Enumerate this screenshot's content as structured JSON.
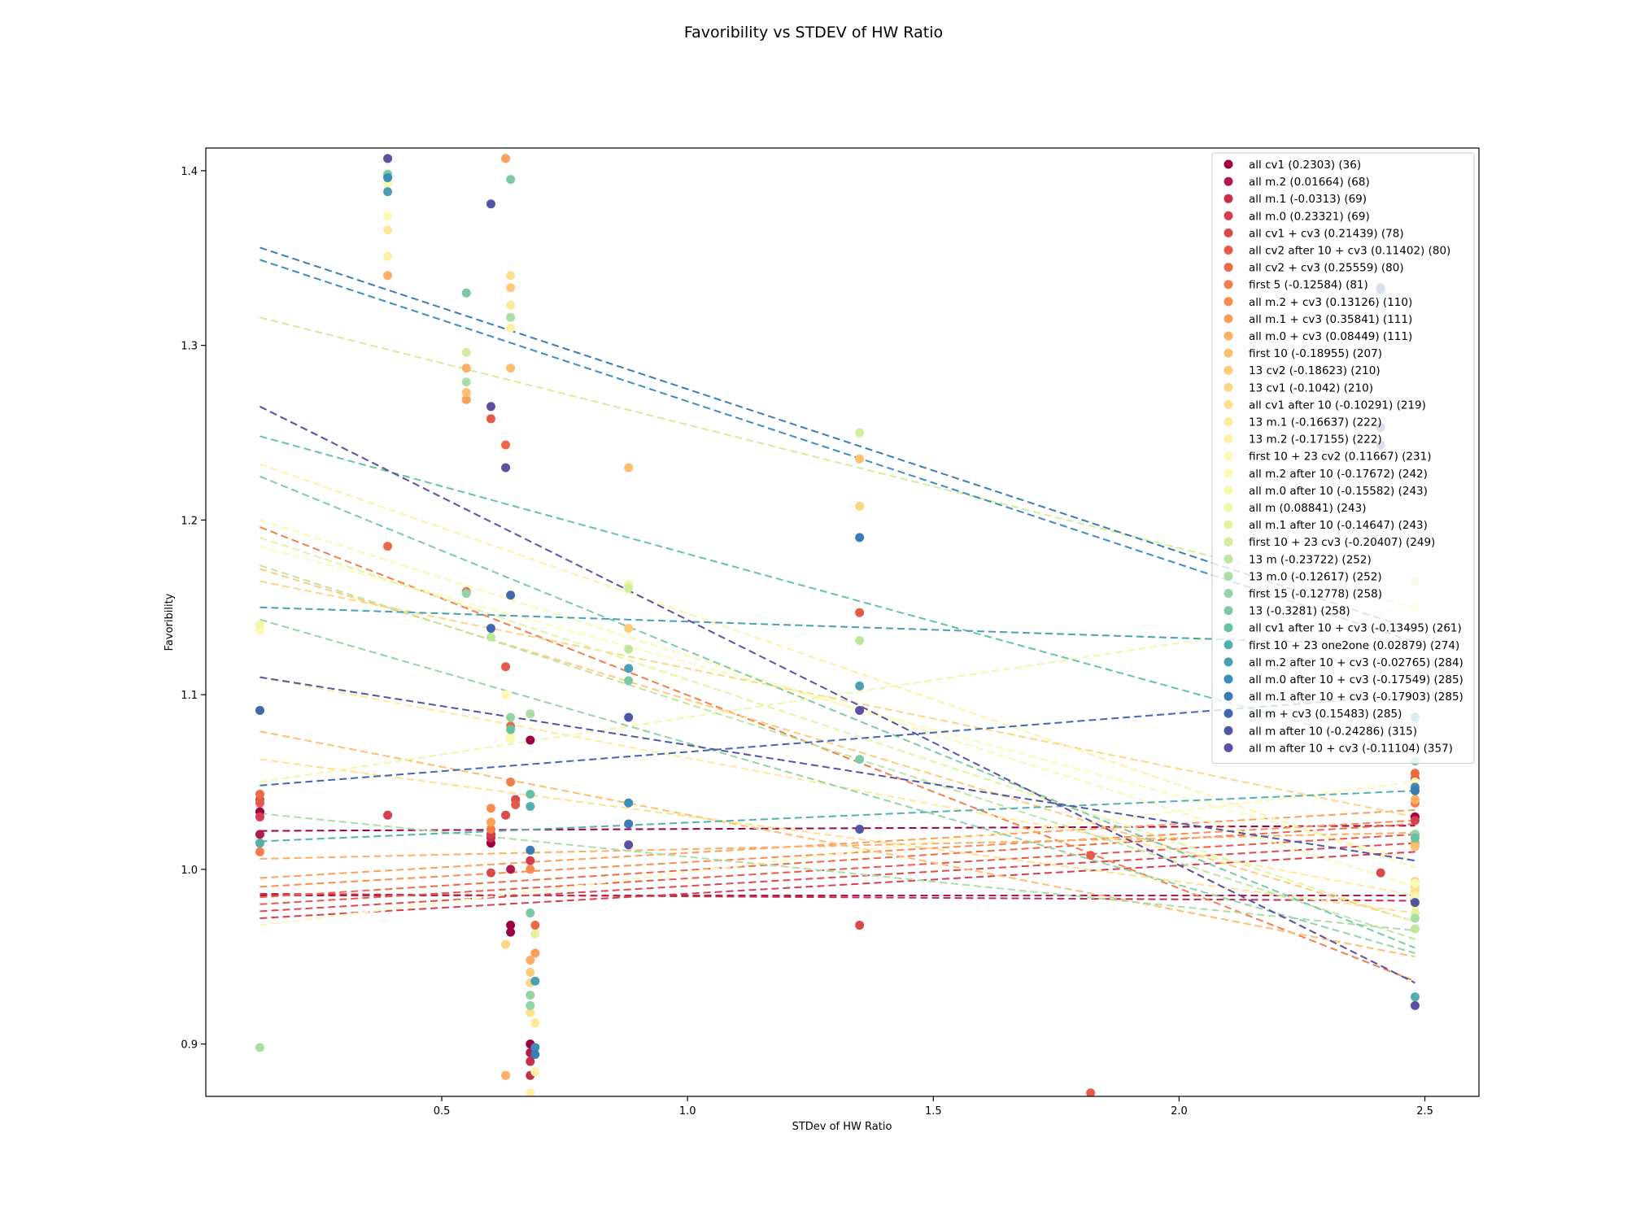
{
  "chart_data": {
    "type": "scatter",
    "title": "Favoribility vs STDEV of HW Ratio",
    "xlabel": "STDev of HW Ratio",
    "ylabel": "Favoribility",
    "xlim": [
      0.02,
      2.61
    ],
    "ylim": [
      0.87,
      1.413
    ],
    "xticks": [
      0.5,
      1.0,
      1.5,
      2.0,
      2.5
    ],
    "yticks": [
      0.9,
      1.0,
      1.1,
      1.2,
      1.3,
      1.4
    ],
    "xtick_labels": [
      "0.5",
      "1.0",
      "1.5",
      "2.0",
      "2.5"
    ],
    "ytick_labels": [
      "0.9",
      "1.0",
      "1.1",
      "1.2",
      "1.3",
      "1.4"
    ],
    "grid": false,
    "legend_position": "upper-right",
    "trendline_x": [
      0.13,
      2.48
    ],
    "series": [
      {
        "name": "all cv1 (0.2303) (36)",
        "color": "#9e0142",
        "trend": [
          1.022,
          1.025
        ],
        "points": [
          [
            0.13,
            1.033
          ],
          [
            0.6,
            1.015
          ],
          [
            0.64,
            0.968
          ],
          [
            0.64,
            0.964
          ],
          [
            0.68,
            1.074
          ],
          [
            0.68,
            0.9
          ],
          [
            2.48,
            1.03
          ]
        ]
      },
      {
        "name": "all m.2 (0.01664) (68)",
        "color": "#b11a4a",
        "trend": [
          0.985,
          0.985
        ],
        "points": [
          [
            0.13,
            1.02
          ],
          [
            0.6,
            1.02
          ],
          [
            0.64,
            1.0
          ],
          [
            0.68,
            0.895
          ],
          [
            2.48,
            1.02
          ]
        ]
      },
      {
        "name": "all m.1 (-0.0313) (69)",
        "color": "#c42d4c",
        "trend": [
          0.986,
          0.982
        ],
        "points": [
          [
            0.13,
            1.015
          ],
          [
            0.6,
            1.018
          ],
          [
            0.68,
            0.89
          ],
          [
            0.68,
            0.882
          ]
        ]
      },
      {
        "name": "all m.0 (0.23321) (69)",
        "color": "#d53e4f",
        "trend": [
          0.972,
          1.01
        ],
        "points": [
          [
            0.13,
            1.03
          ],
          [
            0.39,
            1.031
          ],
          [
            0.6,
            1.02
          ],
          [
            0.68,
            1.005
          ],
          [
            2.48,
            1.028
          ]
        ]
      },
      {
        "name": "all cv1 + cv3 (0.21439) (78)",
        "color": "#dc494c",
        "trend": [
          0.976,
          1.015
        ],
        "points": [
          [
            0.13,
            1.04
          ],
          [
            0.6,
            0.998
          ],
          [
            0.63,
            1.031
          ],
          [
            0.65,
            1.04
          ],
          [
            1.35,
            0.968
          ],
          [
            2.41,
            0.998
          ]
        ]
      },
      {
        "name": "all cv2 after 10 + cv3 (0.11402) (80)",
        "color": "#e55a49",
        "trend": [
          0.98,
          1.02
        ],
        "points": [
          [
            0.13,
            1.038
          ],
          [
            0.6,
            1.258
          ],
          [
            0.63,
            1.116
          ],
          [
            0.65,
            1.037
          ],
          [
            1.35,
            1.147
          ],
          [
            1.82,
            1.008
          ],
          [
            1.82,
            0.872
          ],
          [
            2.48,
            1.052
          ]
        ]
      },
      {
        "name": "all cv2 + cv3 (0.25559) (80)",
        "color": "#ed6a47",
        "trend": [
          0.984,
          1.026
        ],
        "points": [
          [
            0.13,
            1.043
          ],
          [
            0.39,
            1.185
          ],
          [
            0.55,
            1.159
          ],
          [
            0.63,
            1.243
          ],
          [
            0.64,
            1.082
          ],
          [
            0.69,
            0.968
          ],
          [
            2.48,
            1.055
          ]
        ]
      },
      {
        "name": "first 5 (-0.12584) (81)",
        "color": "#f47d4c",
        "trend": [
          1.196,
          0.936
        ],
        "points": [
          [
            0.13,
            1.01
          ],
          [
            0.6,
            1.023
          ],
          [
            0.64,
            1.05
          ],
          [
            2.48,
            1.038
          ]
        ]
      },
      {
        "name": "all m.2 + cv3 (0.13126) (110)",
        "color": "#f88d51",
        "trend": [
          0.99,
          1.028
        ],
        "points": [
          [
            0.6,
            1.035
          ],
          [
            0.68,
            1.0
          ],
          [
            2.48,
            1.045
          ]
        ]
      },
      {
        "name": "all m.1 + cv3 (0.35841) (111)",
        "color": "#faa05b",
        "trend": [
          0.995,
          1.034
        ],
        "points": [
          [
            0.55,
            1.269
          ],
          [
            0.63,
            1.407
          ],
          [
            0.6,
            1.027
          ],
          [
            0.69,
            0.952
          ],
          [
            2.48,
            1.015
          ]
        ]
      },
      {
        "name": "all m.0 + cv3 (0.08449) (111)",
        "color": "#fcaf65",
        "trend": [
          1.006,
          1.021
        ],
        "points": [
          [
            0.39,
            1.34
          ],
          [
            0.55,
            1.287
          ],
          [
            0.63,
            0.882
          ],
          [
            0.68,
            0.948
          ],
          [
            2.48,
            1.04
          ]
        ]
      },
      {
        "name": "first 10 (-0.18955) (207)",
        "color": "#fdbe70",
        "trend": [
          1.079,
          0.95
        ],
        "points": [
          [
            0.55,
            1.273
          ],
          [
            0.64,
            1.287
          ],
          [
            0.88,
            1.23
          ],
          [
            1.35,
            1.235
          ],
          [
            2.48,
            1.013
          ]
        ]
      },
      {
        "name": "13 cv2 (-0.18623) (210)",
        "color": "#fdcb7a",
        "trend": [
          1.172,
          0.97
        ],
        "points": [
          [
            0.64,
            1.333
          ],
          [
            0.68,
            0.941
          ],
          [
            0.88,
            1.138
          ],
          [
            2.48,
            0.993
          ]
        ]
      },
      {
        "name": "13 cv1 (-0.1042) (210)",
        "color": "#fdd684",
        "trend": [
          1.165,
          1.03
        ],
        "points": [
          [
            0.63,
            0.957
          ],
          [
            0.68,
            0.935
          ],
          [
            1.35,
            1.208
          ],
          [
            2.48,
            0.99
          ]
        ]
      },
      {
        "name": "all cv1 after 10 (-0.10291) (219)",
        "color": "#fee18f",
        "trend": [
          1.063,
          0.975
        ],
        "points": [
          [
            0.64,
            1.34
          ],
          [
            0.68,
            0.918
          ],
          [
            2.48,
            0.988
          ]
        ]
      },
      {
        "name": "13 m.1 (-0.16637) (222)",
        "color": "#feea9b",
        "trend": [
          1.11,
          0.985
        ],
        "points": [
          [
            0.39,
            1.366
          ],
          [
            0.64,
            1.323
          ],
          [
            0.69,
            0.912
          ],
          [
            2.48,
            0.985
          ]
        ]
      },
      {
        "name": "13 m.2 (-0.17155) (222)",
        "color": "#fff0a8",
        "trend": [
          1.232,
          1.001
        ],
        "points": [
          [
            0.39,
            1.351
          ],
          [
            0.64,
            1.31
          ],
          [
            0.68,
            0.872
          ],
          [
            0.69,
            0.884
          ],
          [
            2.48,
            0.98
          ]
        ]
      },
      {
        "name": "first 10 + 23 cv2 (0.11667) (231)",
        "color": "#fff7b3",
        "trend": [
          0.968,
          1.05
        ],
        "points": [
          [
            0.13,
            1.137
          ],
          [
            0.63,
            1.1
          ],
          [
            2.48,
            1.05
          ]
        ]
      },
      {
        "name": "all m.2 after 10 (-0.17672) (242)",
        "color": "#fcfab4",
        "trend": [
          1.185,
          1.005
        ],
        "points": [
          [
            0.39,
            1.374
          ],
          [
            0.64,
            1.077
          ],
          [
            2.48,
            0.992
          ]
        ]
      },
      {
        "name": "all m.0 after 10 (-0.15582) (243)",
        "color": "#f6faaf",
        "trend": [
          1.2,
          0.99
        ],
        "points": [
          [
            0.39,
            1.393
          ],
          [
            0.64,
            1.075
          ],
          [
            2.48,
            0.984
          ]
        ]
      },
      {
        "name": "all m (0.08841) (243)",
        "color": "#eef8a8",
        "trend": [
          1.05,
          1.15
        ],
        "points": [
          [
            0.13,
            1.14
          ],
          [
            0.88,
            1.163
          ],
          [
            2.48,
            1.15
          ]
        ]
      },
      {
        "name": "all m.1 after 10 (-0.14647) (243)",
        "color": "#e3f4a0",
        "trend": [
          1.19,
          0.97
        ],
        "points": [
          [
            0.64,
            1.08
          ],
          [
            0.69,
            0.963
          ],
          [
            2.48,
            0.975
          ]
        ]
      },
      {
        "name": "first 10 + 23 cv3 (-0.20407) (249)",
        "color": "#d2ed9b",
        "trend": [
          1.316,
          1.15
        ],
        "points": [
          [
            0.55,
            1.296
          ],
          [
            0.88,
            1.161
          ],
          [
            1.35,
            1.25
          ],
          [
            2.48,
            1.165
          ]
        ]
      },
      {
        "name": "13 m (-0.23722) (252)",
        "color": "#bfe5a0",
        "trend": [
          1.174,
          0.96
        ],
        "points": [
          [
            0.6,
            1.133
          ],
          [
            0.88,
            1.126
          ],
          [
            1.35,
            1.131
          ],
          [
            2.48,
            0.966
          ]
        ]
      },
      {
        "name": "13 m.0 (-0.12617) (252)",
        "color": "#abdda4",
        "trend": [
          1.032,
          0.965
        ],
        "points": [
          [
            0.13,
            0.898
          ],
          [
            0.55,
            1.279
          ],
          [
            0.64,
            1.316
          ],
          [
            0.68,
            1.089
          ],
          [
            2.48,
            0.972
          ]
        ]
      },
      {
        "name": "first 15 (-0.12778) (258)",
        "color": "#93d3a5",
        "trend": [
          1.143,
          0.952
        ],
        "points": [
          [
            0.55,
            1.158
          ],
          [
            0.64,
            1.087
          ],
          [
            0.68,
            0.928
          ],
          [
            0.68,
            0.922
          ],
          [
            2.48,
            1.02
          ]
        ]
      },
      {
        "name": "13 (-0.3281) (258)",
        "color": "#7ccaa5",
        "trend": [
          1.225,
          0.955
        ],
        "points": [
          [
            0.39,
            1.398
          ],
          [
            0.55,
            1.33
          ],
          [
            0.64,
            1.395
          ],
          [
            0.68,
            0.975
          ],
          [
            0.88,
            1.108
          ],
          [
            1.35,
            1.063
          ],
          [
            2.48,
            1.062
          ]
        ]
      },
      {
        "name": "all cv1 after 10 + cv3 (-0.13495) (261)",
        "color": "#66c2a5",
        "trend": [
          1.248,
          1.066
        ],
        "points": [
          [
            0.64,
            1.08
          ],
          [
            0.68,
            1.043
          ],
          [
            2.48,
            1.018
          ]
        ]
      },
      {
        "name": "first 10 + 23 one2one (0.02879) (274)",
        "color": "#55b0ad",
        "trend": [
          1.016,
          1.045
        ],
        "points": [
          [
            0.13,
            1.015
          ],
          [
            0.68,
            1.036
          ],
          [
            2.48,
            0.927
          ]
        ]
      },
      {
        "name": "all m.2 after 10 + cv3 (-0.02765) (284)",
        "color": "#4a9fb5",
        "trend": [
          1.15,
          1.128
        ],
        "points": [
          [
            0.39,
            1.388
          ],
          [
            0.69,
            0.936
          ],
          [
            0.88,
            1.115
          ],
          [
            1.35,
            1.105
          ],
          [
            2.48,
            1.087
          ]
        ]
      },
      {
        "name": "all m.0 after 10 + cv3 (-0.17549) (285)",
        "color": "#3d8dbb",
        "trend": [
          1.349,
          1.13
        ],
        "points": [
          [
            0.39,
            1.396
          ],
          [
            0.69,
            0.898
          ],
          [
            0.88,
            1.038
          ],
          [
            2.48,
            1.047
          ]
        ]
      },
      {
        "name": "all m.1 after 10 + cv3 (-0.17903) (285)",
        "color": "#3a7cb6",
        "trend": [
          1.356,
          1.137
        ],
        "points": [
          [
            0.68,
            1.011
          ],
          [
            0.69,
            0.894
          ],
          [
            0.88,
            1.026
          ],
          [
            1.35,
            1.19
          ],
          [
            2.41,
            1.333
          ],
          [
            2.48,
            1.045
          ]
        ]
      },
      {
        "name": "all m + cv3 (0.15483) (285)",
        "color": "#4168ae",
        "trend": [
          1.048,
          1.1
        ],
        "points": [
          [
            0.13,
            1.091
          ],
          [
            0.6,
            1.138
          ],
          [
            0.64,
            1.157
          ],
          [
            2.41,
            1.332
          ]
        ]
      },
      {
        "name": "all m after 10 (-0.24286) (315)",
        "color": "#4f57a5",
        "trend": [
          1.11,
          1.005
        ],
        "points": [
          [
            0.6,
            1.381
          ],
          [
            0.88,
            1.087
          ],
          [
            1.35,
            1.023
          ],
          [
            2.41,
            1.253
          ],
          [
            2.48,
            0.981
          ]
        ]
      },
      {
        "name": "all m after 10 + cv3 (-0.11104) (357)",
        "color": "#5e4fa2",
        "trend": [
          1.265,
          0.935
        ],
        "points": [
          [
            0.39,
            1.407
          ],
          [
            0.6,
            1.265
          ],
          [
            0.63,
            1.23
          ],
          [
            0.88,
            1.014
          ],
          [
            1.35,
            1.091
          ],
          [
            2.41,
            1.243
          ],
          [
            2.48,
            0.922
          ]
        ]
      }
    ]
  }
}
